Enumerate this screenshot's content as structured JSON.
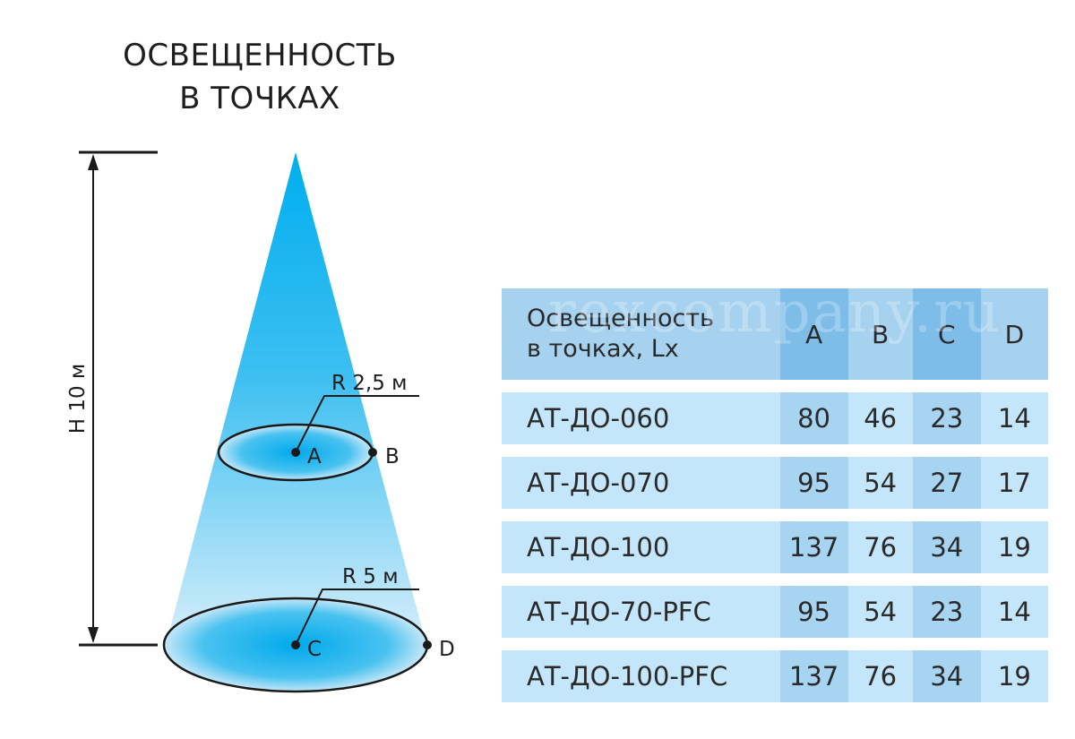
{
  "title": {
    "line1": "ОСВЕЩЕННОСТЬ",
    "line2": "В ТОЧКАХ"
  },
  "diagram": {
    "height_label": "H 10 м",
    "upper_radius_label": "R 2,5 м",
    "lower_radius_label": "R 5 м",
    "point_a": "A",
    "point_b": "B",
    "point_c": "C",
    "point_d": "D",
    "colors": {
      "cone_top": "#00aeef",
      "cone_bottom": "#cfe9f9",
      "ellipse_center": "#00a9ec",
      "ellipse_edge": "#bfe4f8",
      "line": "#1a1a1a"
    }
  },
  "watermark": "rexcompany.ru",
  "table": {
    "header": {
      "label_line1": "Освещенность",
      "label_line2": "в точках, Lx",
      "columns": [
        "A",
        "B",
        "C",
        "D"
      ]
    },
    "rows": [
      {
        "model": "АТ-ДО-060",
        "values": [
          "80",
          "46",
          "23",
          "14"
        ]
      },
      {
        "model": "АТ-ДО-070",
        "values": [
          "95",
          "54",
          "27",
          "17"
        ]
      },
      {
        "model": "АТ-ДО-100",
        "values": [
          "137",
          "76",
          "34",
          "19"
        ]
      },
      {
        "model": "АТ-ДО-70-PFC",
        "values": [
          "95",
          "54",
          "23",
          "14"
        ]
      },
      {
        "model": "АТ-ДО-100-PFC",
        "values": [
          "137",
          "76",
          "34",
          "19"
        ]
      }
    ],
    "colors": {
      "header": "#a7d2ef",
      "header_highlight": "#7dbde8",
      "row": "#c4e6fa",
      "row_highlight": "#a6d4f1"
    }
  }
}
